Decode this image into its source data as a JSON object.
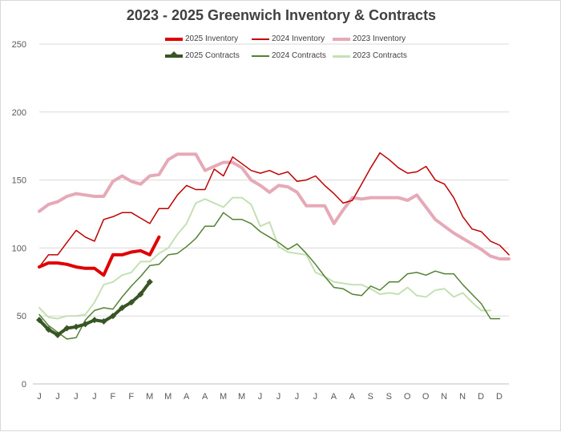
{
  "chart_data": {
    "type": "line",
    "title": "2023 - 2025 Greenwich Inventory & Contracts",
    "xlabel": "",
    "ylabel": "",
    "ylim": [
      0,
      250
    ],
    "yticks": [
      0,
      50,
      100,
      150,
      200,
      250
    ],
    "grid": true,
    "legend_position": "top",
    "x_tick_labels": [
      "J",
      "J",
      "J",
      "J",
      "F",
      "F",
      "M",
      "M",
      "A",
      "A",
      "M",
      "M",
      "J",
      "J",
      "J",
      "J",
      "A",
      "A",
      "S",
      "S",
      "O",
      "O",
      "N",
      "N",
      "D",
      "D"
    ],
    "series": [
      {
        "name": "2025 Inventory",
        "color": "#e00000",
        "width": 4,
        "markers": false,
        "values": [
          86,
          89,
          89,
          88,
          86,
          85,
          85,
          80,
          95,
          95,
          97,
          98,
          95,
          108
        ]
      },
      {
        "name": "2024 Inventory",
        "color": "#c00000",
        "width": 1.5,
        "markers": false,
        "values": [
          86,
          95,
          95,
          104,
          113,
          108,
          105,
          121,
          123,
          126,
          126,
          122,
          118,
          129,
          129,
          139,
          146,
          143,
          143,
          158,
          153,
          167,
          162,
          157,
          155,
          157,
          154,
          156,
          149,
          150,
          153,
          146,
          140,
          133,
          135,
          147,
          159,
          170,
          165,
          159,
          155,
          156,
          160,
          150,
          147,
          137,
          123,
          114,
          112,
          105,
          102,
          95
        ]
      },
      {
        "name": "2023 Inventory",
        "color": "#e6a9b8",
        "width": 4,
        "markers": false,
        "values": [
          127,
          132,
          134,
          138,
          140,
          139,
          138,
          138,
          149,
          153,
          149,
          147,
          153,
          154,
          165,
          169,
          169,
          169,
          157,
          160,
          163,
          163,
          159,
          150,
          146,
          141,
          146,
          145,
          141,
          131,
          131,
          131,
          118,
          128,
          137,
          136,
          137,
          137,
          137,
          137,
          135,
          139,
          130,
          121,
          116,
          111,
          107,
          103,
          99,
          94,
          92,
          92
        ]
      },
      {
        "name": "2025 Contracts",
        "color": "#375623",
        "width": 4,
        "markers": true,
        "values": [
          47,
          40,
          36,
          41,
          42,
          44,
          47,
          46,
          50,
          56,
          60,
          66,
          75
        ]
      },
      {
        "name": "2024 Contracts",
        "color": "#548235",
        "width": 1.5,
        "markers": false,
        "values": [
          51,
          43,
          38,
          33,
          34,
          47,
          54,
          56,
          55,
          64,
          72,
          79,
          87,
          88,
          95,
          96,
          101,
          107,
          116,
          116,
          126,
          121,
          121,
          118,
          112,
          108,
          104,
          99,
          103,
          96,
          88,
          79,
          71,
          70,
          66,
          65,
          72,
          69,
          75,
          75,
          81,
          82,
          80,
          83,
          81,
          81,
          73,
          66,
          59,
          48,
          48
        ]
      },
      {
        "name": "2023 Contracts",
        "color": "#c5e0b4",
        "width": 2,
        "markers": false,
        "values": [
          56,
          49,
          48,
          50,
          50,
          51,
          60,
          73,
          75,
          80,
          82,
          90,
          90,
          96,
          100,
          110,
          118,
          133,
          136,
          133,
          130,
          137,
          137,
          132,
          116,
          119,
          101,
          97,
          96,
          95,
          82,
          79,
          75,
          74,
          73,
          73,
          70,
          66,
          67,
          66,
          71,
          65,
          64,
          69,
          70,
          64,
          67,
          60,
          54,
          54
        ]
      }
    ]
  }
}
